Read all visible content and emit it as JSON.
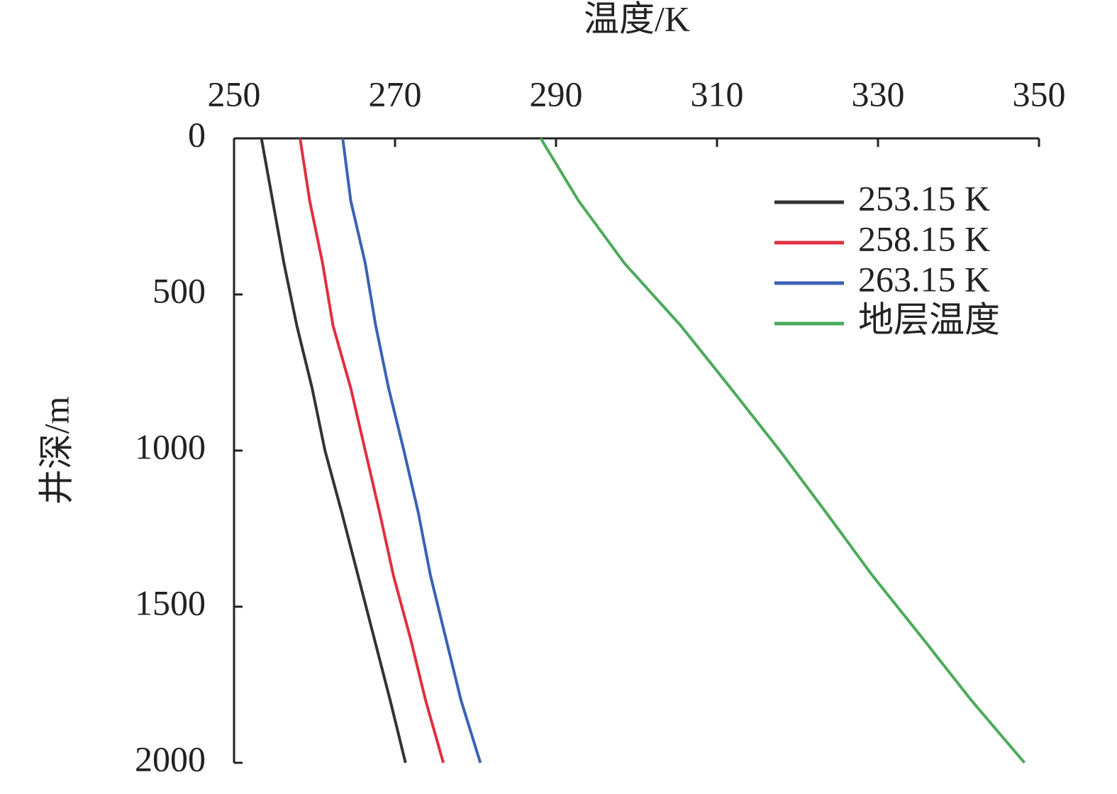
{
  "chart_data": {
    "type": "line",
    "orientation": "depth-down",
    "x_label": "温度/K",
    "y_label": "井深/m",
    "y": [
      0,
      200,
      400,
      600,
      800,
      1000,
      1200,
      1400,
      1600,
      1800,
      2000
    ],
    "series": [
      {
        "name": "253.15 K",
        "color": "#333333",
        "values": [
          253.4,
          254.8,
          256.2,
          257.8,
          259.7,
          261.3,
          263.4,
          265.4,
          267.4,
          269.4,
          271.3
        ]
      },
      {
        "name": "258.15 K",
        "color": "#e03040",
        "values": [
          258.2,
          259.4,
          261.0,
          262.3,
          264.5,
          266.3,
          268.1,
          269.8,
          271.9,
          273.8,
          276.0
        ]
      },
      {
        "name": "263.15 K",
        "color": "#3a62b5",
        "values": [
          263.5,
          264.5,
          266.3,
          267.6,
          269.2,
          271.1,
          272.9,
          274.4,
          276.3,
          278.2,
          280.6
        ]
      },
      {
        "name": "地层温度",
        "color": "#4caa5c",
        "values": [
          288.1,
          292.8,
          298.5,
          305.5,
          311.7,
          317.8,
          323.6,
          329.3,
          335.5,
          341.6,
          348.2
        ]
      }
    ],
    "xlim": [
      250,
      350
    ],
    "xticks": [
      250,
      270,
      290,
      310,
      330,
      350
    ],
    "ylim": [
      0,
      2000
    ],
    "yticks": [
      0,
      500,
      1000,
      1500,
      2000
    ],
    "legend": "upper-right"
  }
}
